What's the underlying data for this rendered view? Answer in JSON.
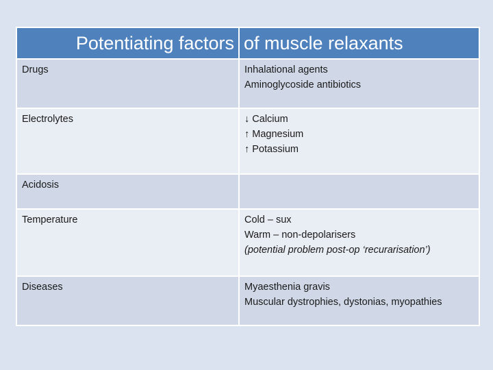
{
  "table": {
    "header_left": "Potentiating factors",
    "header_right": "of muscle relaxants",
    "rows": [
      {
        "factor": "Drugs",
        "details": [
          "Inhalational agents",
          "Aminoglycoside antibiotics"
        ]
      },
      {
        "factor": "Electrolytes",
        "details": [
          "↓ Calcium",
          "↑ Magnesium",
          "↑ Potassium"
        ]
      },
      {
        "factor": "Acidosis",
        "details": []
      },
      {
        "factor": "Temperature",
        "details": [
          "Cold – sux",
          "Warm – non-depolarisers",
          "(potential problem post-op ‘recurarisation’)"
        ]
      },
      {
        "factor": "Diseases",
        "details": [
          "Myaesthenia gravis",
          "Muscular dystrophies, dystonias, myopathies"
        ]
      }
    ]
  },
  "colors": {
    "background": "#dae3ef",
    "header": "#4f81bd",
    "row_dark": "#d0d8e8",
    "row_light": "#e9edf4"
  }
}
